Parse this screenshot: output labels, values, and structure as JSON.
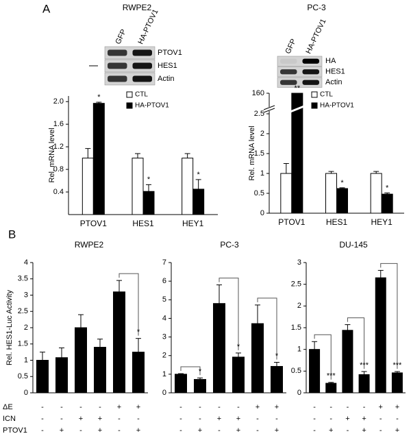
{
  "panels": [
    "A",
    "B"
  ],
  "blots": [
    {
      "lanes": [
        "GFP",
        "HA-PTOV1"
      ],
      "rows": [
        "PTOV1",
        "HES1",
        "Actin"
      ]
    },
    {
      "lanes": [
        "GFP",
        "HA-PTOV1"
      ],
      "rows": [
        "HA",
        "HES1",
        "Actin"
      ]
    }
  ],
  "conditions": {
    "labels": [
      "ΔE",
      "ICN",
      "PTOV1"
    ],
    "values": [
      [
        "-",
        "-",
        "-",
        "-",
        "+",
        "+"
      ],
      [
        "-",
        "-",
        "+",
        "+",
        "-",
        "-"
      ],
      [
        "-",
        "+",
        "-",
        "+",
        "-",
        "+"
      ]
    ]
  },
  "chart_data": [
    {
      "type": "bar",
      "title": "RWPE2",
      "y_label": "Rel. mRNA level",
      "categories": [
        "PTOV1",
        "HES1",
        "HEY1"
      ],
      "series": [
        {
          "name": "CTL",
          "color": "#ffffff",
          "values": [
            1.0,
            1.0,
            1.0
          ],
          "errors": [
            0.17,
            0.08,
            0.08
          ],
          "significance": [
            null,
            null,
            null
          ]
        },
        {
          "name": "HA-PTOV1",
          "color": "#000000",
          "values": [
            1.97,
            0.41,
            0.45
          ],
          "errors": [
            0.02,
            0.12,
            0.17
          ],
          "significance": [
            "*",
            "*",
            "*"
          ]
        }
      ],
      "ylim": [
        0,
        2.1
      ],
      "yticks": [
        0.4,
        0.8,
        1.2,
        1.6,
        {
          "value": 2,
          "label": "2.0"
        }
      ],
      "legend": "top-right"
    },
    {
      "type": "bar",
      "title": "PC-3",
      "y_label": "Rel. mRNA level",
      "categories": [
        "PTOV1",
        "HES1",
        "HEY1"
      ],
      "series": [
        {
          "name": "CTL",
          "color": "#ffffff",
          "values": [
            1.0,
            1.0,
            1.0
          ],
          "errors": [
            0.25,
            0.05,
            0.05
          ],
          "significance": [
            null,
            null,
            null
          ]
        },
        {
          "name": "HA-PTOV1",
          "color": "#000000",
          "values": [
            160,
            0.62,
            0.48
          ],
          "errors": [
            null,
            0.02,
            0.03
          ],
          "significance": [
            "**",
            "*",
            "*"
          ]
        }
      ],
      "ylim": [
        0,
        160
      ],
      "yticks": [
        0,
        0.5,
        1,
        1.5,
        2,
        2.5,
        160
      ],
      "broken_axis": true,
      "legend": "top-right"
    },
    {
      "type": "bar",
      "title": "RWPE2",
      "y_label": "Rel. HES1-Luc Activity",
      "series": [
        {
          "color": "#000000",
          "values": [
            1.0,
            1.08,
            2.0,
            1.4,
            3.1,
            1.25
          ],
          "errors": [
            0.25,
            0.3,
            0.4,
            0.25,
            0.35,
            0.42
          ],
          "significance": [
            null,
            null,
            null,
            null,
            null,
            "*"
          ]
        }
      ],
      "ylim": [
        0,
        4
      ],
      "yticks": [
        0,
        0.5,
        1,
        1.5,
        2,
        2.5,
        3,
        3.5,
        4
      ]
    },
    {
      "type": "bar",
      "title": "PC-3",
      "series": [
        {
          "color": "#000000",
          "values": [
            1.0,
            0.72,
            4.8,
            1.92,
            3.72,
            1.42
          ],
          "errors": [
            0.03,
            0.08,
            1.0,
            0.22,
            1.0,
            0.22
          ],
          "significance": [
            null,
            "*",
            null,
            "*",
            null,
            "*"
          ]
        }
      ],
      "ylim": [
        0,
        7
      ],
      "yticks": [
        0,
        1,
        2,
        3,
        4,
        5,
        6,
        7
      ]
    },
    {
      "type": "bar",
      "title": "DU-145",
      "series": [
        {
          "color": "#000000",
          "values": [
            1.0,
            0.22,
            1.44,
            0.42,
            2.65,
            0.46
          ],
          "errors": [
            0.18,
            0.02,
            0.13,
            0.07,
            0.17,
            0.03
          ],
          "significance": [
            null,
            "***",
            null,
            "***",
            null,
            "***"
          ]
        }
      ],
      "ylim": [
        0,
        3
      ],
      "yticks": [
        0,
        0.5,
        1,
        1.5,
        2,
        2.5,
        3
      ]
    }
  ]
}
